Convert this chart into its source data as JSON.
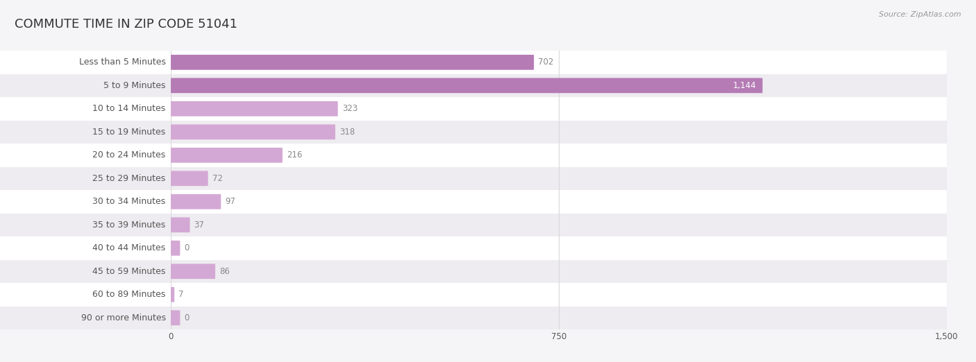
{
  "title": "COMMUTE TIME IN ZIP CODE 51041",
  "source": "Source: ZipAtlas.com",
  "categories": [
    "Less than 5 Minutes",
    "5 to 9 Minutes",
    "10 to 14 Minutes",
    "15 to 19 Minutes",
    "20 to 24 Minutes",
    "25 to 29 Minutes",
    "30 to 34 Minutes",
    "35 to 39 Minutes",
    "40 to 44 Minutes",
    "45 to 59 Minutes",
    "60 to 89 Minutes",
    "90 or more Minutes"
  ],
  "values": [
    702,
    1144,
    323,
    318,
    216,
    72,
    97,
    37,
    0,
    86,
    7,
    0
  ],
  "xlim": [
    0,
    1500
  ],
  "xticks": [
    0,
    750,
    1500
  ],
  "bar_color": "#b57bb5",
  "bar_light_color": "#d4a8d4",
  "bg_color": "#f5f4f6",
  "row_light_color": "#ffffff",
  "row_dark_color": "#eeecf0",
  "title_color": "#333333",
  "label_color": "#555555",
  "value_color": "#888888",
  "value_color_inside": "#ffffff",
  "grid_color": "#d8d8d8",
  "title_fontsize": 13,
  "label_fontsize": 9,
  "value_fontsize": 8.5,
  "bar_height": 0.65,
  "bar_rounding": 0.28
}
